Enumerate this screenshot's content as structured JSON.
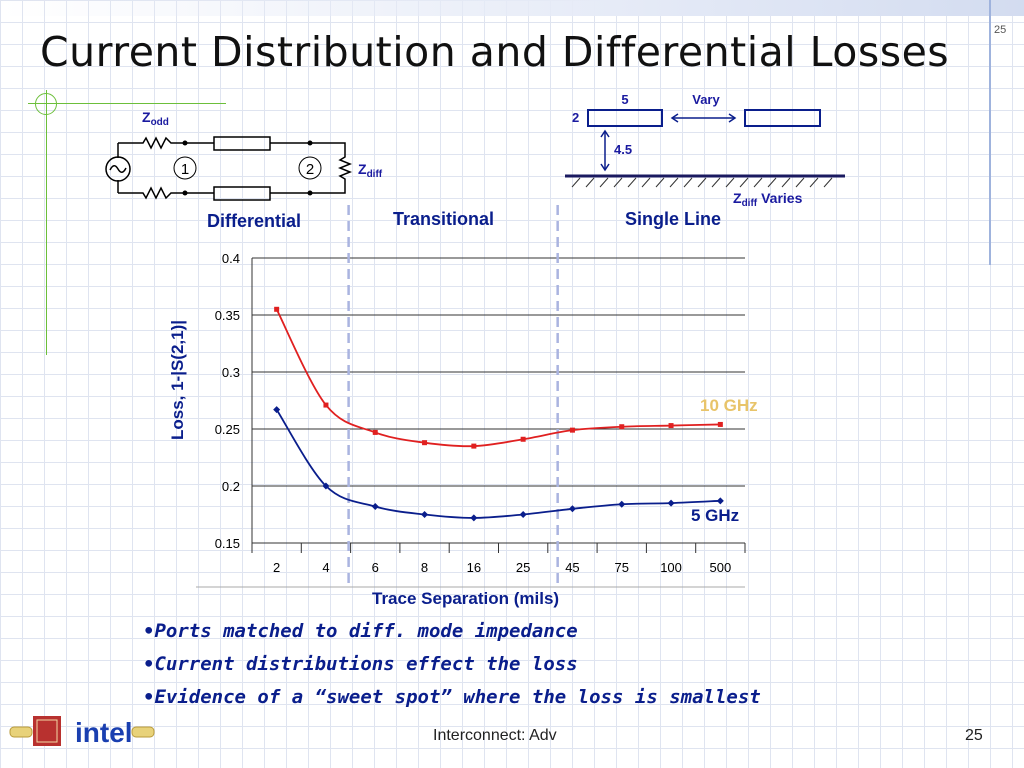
{
  "slide": {
    "title": "Current Distribution and Differential Losses",
    "corner_number": "25",
    "footer_text": "Interconnect: Adv",
    "footer_page": "25",
    "logo_text": "intel"
  },
  "circuit": {
    "z_odd": "Z",
    "z_odd_sub": "odd",
    "port1": "1",
    "port2": "2",
    "z_diff": "Z",
    "z_diff_sub": "diff"
  },
  "cross_section": {
    "width_label": "5",
    "spacing_label": "Vary",
    "thickness_label": "2",
    "height_label": "4.5",
    "zdiff": "Z",
    "zdiff_sub": "diff",
    "varies": "Varies"
  },
  "regions": {
    "differential": "Differential",
    "transitional": "Transitional",
    "single_line": "Single Line"
  },
  "chart_data": {
    "type": "line",
    "categories": [
      "2",
      "4",
      "6",
      "8",
      "16",
      "25",
      "45",
      "75",
      "100",
      "500"
    ],
    "ylabel": "Loss, 1-|S(2,1)|",
    "xlabel": "Trace Separation (mils)",
    "ylim": [
      0.15,
      0.4
    ],
    "yticks": [
      "0.4",
      "0.35",
      "0.3",
      "0.25",
      "0.2",
      "0.15"
    ],
    "grid": "horizontal",
    "series": [
      {
        "name": "10 GHz",
        "color": "#e02020",
        "label_color": "#e8c46a",
        "values": [
          0.355,
          0.271,
          0.247,
          0.238,
          0.235,
          0.241,
          0.249,
          0.252,
          0.253,
          0.254
        ]
      },
      {
        "name": "5 GHz",
        "color": "#0a1e8c",
        "label_color": "#0a1e8c",
        "values": [
          0.267,
          0.2,
          0.182,
          0.175,
          0.172,
          0.175,
          0.18,
          0.184,
          0.185,
          0.187
        ]
      }
    ]
  },
  "bullets": [
    "•Ports matched to diff. mode impedance",
    "•Current distributions effect the loss",
    "•Evidence of a “sweet spot” where the loss is smallest"
  ],
  "colors": {
    "accent_blue": "#0a1e8c",
    "grid_bg": "#dfe4f0",
    "green_rule": "#6cbf3a"
  }
}
